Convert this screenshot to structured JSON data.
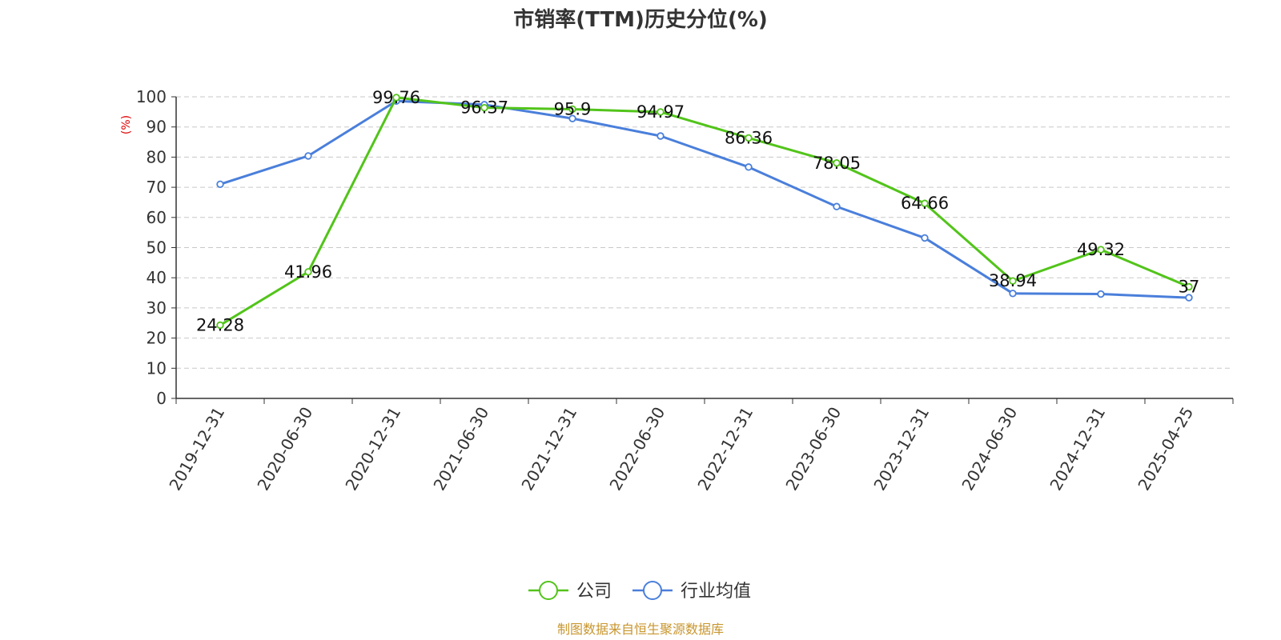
{
  "chart_data": {
    "type": "line",
    "title": "市销率(TTM)历史分位(%)",
    "ylabel": "(%)",
    "ylim": [
      0,
      100
    ],
    "yticks": [
      0,
      10,
      20,
      30,
      40,
      50,
      60,
      70,
      80,
      90,
      100
    ],
    "grid": true,
    "legend_position": "bottom-center",
    "categories": [
      "2019-12-31",
      "2020-06-30",
      "2020-12-31",
      "2021-06-30",
      "2021-12-31",
      "2022-06-30",
      "2022-12-31",
      "2023-06-30",
      "2023-12-31",
      "2024-06-30",
      "2024-12-31",
      "2025-04-25"
    ],
    "series": [
      {
        "name": "公司",
        "color": "#52c41a",
        "values": [
          24.28,
          41.96,
          99.76,
          96.37,
          95.9,
          94.97,
          86.36,
          78.05,
          64.66,
          38.94,
          49.32,
          37
        ],
        "labels": [
          "24.28",
          "41.96",
          "99.76",
          "96.37",
          "95.9",
          "94.97",
          "86.36",
          "78.05",
          "64.66",
          "38.94",
          "49.32",
          "37"
        ]
      },
      {
        "name": "行业均值",
        "color": "#4a7fdb",
        "values": [
          71.0,
          80.4,
          98.6,
          97.4,
          92.8,
          87.0,
          76.7,
          63.6,
          53.2,
          34.8,
          34.6,
          33.4
        ]
      }
    ],
    "source": "制图数据来自恒生聚源数据库"
  }
}
